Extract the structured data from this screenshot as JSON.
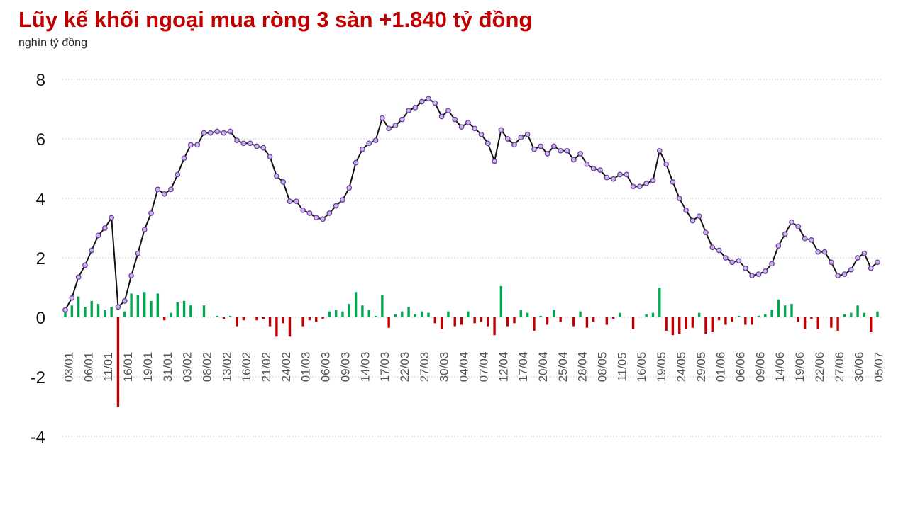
{
  "chart_data": {
    "type": "bar+line",
    "title": "Lũy kế khối ngoại mua ròng 3 sàn +1.840 tỷ đồng",
    "unit_label": "nghìn tỷ đồng",
    "ylim": [
      -4,
      8
    ],
    "y_ticks": [
      8,
      6,
      4,
      2,
      0,
      -2,
      -4
    ],
    "grid": true,
    "x_tick_labels": [
      "03/01",
      "06/01",
      "11/01",
      "16/01",
      "19/01",
      "31/01",
      "03/02",
      "08/02",
      "13/02",
      "16/02",
      "21/02",
      "24/02",
      "01/03",
      "06/03",
      "09/03",
      "14/03",
      "17/03",
      "22/03",
      "27/03",
      "30/03",
      "04/04",
      "07/04",
      "12/04",
      "17/04",
      "20/04",
      "25/04",
      "28/04",
      "08/05",
      "11/05",
      "16/05",
      "19/05",
      "24/05",
      "29/05",
      "01/06",
      "06/06",
      "09/06",
      "14/06",
      "19/06",
      "22/06",
      "27/06",
      "30/06",
      "05/07"
    ],
    "colors": {
      "positive": "#00a651",
      "negative": "#c00000",
      "line": "#111111",
      "marker_fill": "#c9b6e4",
      "marker_stroke": "#6a3ea1"
    },
    "series": [
      {
        "kind": "line",
        "values": [
          0.25,
          0.65,
          1.35,
          1.75,
          2.25,
          2.75,
          3.0,
          3.35,
          0.35,
          0.55,
          1.4,
          2.15,
          2.95,
          3.5,
          4.3,
          4.15,
          4.3,
          4.8,
          5.35,
          5.8,
          5.8,
          6.2,
          6.2,
          6.25,
          6.2,
          6.25,
          5.95,
          5.85,
          5.85,
          5.75,
          5.7,
          5.4,
          4.75,
          4.55,
          3.9,
          3.9,
          3.6,
          3.5,
          3.35,
          3.3,
          3.5,
          3.75,
          3.95,
          4.35,
          5.2,
          5.65,
          5.85,
          5.95,
          6.7,
          6.35,
          6.45,
          6.65,
          6.95,
          7.05,
          7.25,
          7.35,
          7.2,
          6.75,
          6.95,
          6.65,
          6.4,
          6.55,
          6.35,
          6.15,
          5.85,
          5.25,
          6.3,
          6.0,
          5.8,
          6.05,
          6.15,
          5.65,
          5.75,
          5.5,
          5.75,
          5.6,
          5.6,
          5.3,
          5.5,
          5.15,
          5.0,
          4.95,
          4.7,
          4.65,
          4.8,
          4.8,
          4.4,
          4.4,
          4.5,
          4.6,
          5.6,
          5.15,
          4.55,
          4.0,
          3.6,
          3.25,
          3.4,
          2.85,
          2.35,
          2.25,
          2.0,
          1.85,
          1.9,
          1.65,
          1.4,
          1.45,
          1.55,
          1.8,
          2.4,
          2.8,
          3.2,
          3.05,
          2.65,
          2.6,
          2.2,
          2.2,
          1.85,
          1.4,
          1.45,
          1.6,
          2.0,
          2.15,
          1.65,
          1.85
        ]
      },
      {
        "kind": "bar",
        "values": [
          0.25,
          0.4,
          0.7,
          0.35,
          0.55,
          0.45,
          0.25,
          0.35,
          -3.0,
          0.2,
          0.8,
          0.75,
          0.85,
          0.55,
          0.8,
          -0.1,
          0.15,
          0.5,
          0.55,
          0.4,
          0.0,
          0.4,
          0.0,
          0.05,
          -0.05,
          0.05,
          -0.3,
          -0.1,
          0.0,
          -0.1,
          -0.05,
          -0.3,
          -0.65,
          -0.2,
          -0.65,
          0.0,
          -0.3,
          -0.1,
          -0.15,
          -0.05,
          0.2,
          0.25,
          0.2,
          0.45,
          0.85,
          0.4,
          0.25,
          0.05,
          0.75,
          -0.35,
          0.1,
          0.2,
          0.35,
          0.1,
          0.2,
          0.15,
          -0.2,
          -0.4,
          0.2,
          -0.3,
          -0.25,
          0.2,
          -0.2,
          -0.15,
          -0.3,
          -0.6,
          1.05,
          -0.3,
          -0.2,
          0.25,
          0.15,
          -0.45,
          0.05,
          -0.25,
          0.25,
          -0.15,
          0.0,
          -0.3,
          0.2,
          -0.35,
          -0.15,
          0.0,
          -0.25,
          -0.05,
          0.15,
          0.0,
          -0.4,
          0.0,
          0.1,
          0.15,
          1.0,
          -0.45,
          -0.6,
          -0.55,
          -0.4,
          -0.35,
          0.15,
          -0.55,
          -0.5,
          -0.1,
          -0.25,
          -0.15,
          0.05,
          -0.25,
          -0.25,
          0.05,
          0.1,
          0.25,
          0.6,
          0.4,
          0.45,
          -0.15,
          -0.4,
          -0.05,
          -0.4,
          0.0,
          -0.35,
          -0.45,
          0.1,
          0.15,
          0.4,
          0.15,
          -0.5,
          0.2
        ]
      }
    ]
  }
}
